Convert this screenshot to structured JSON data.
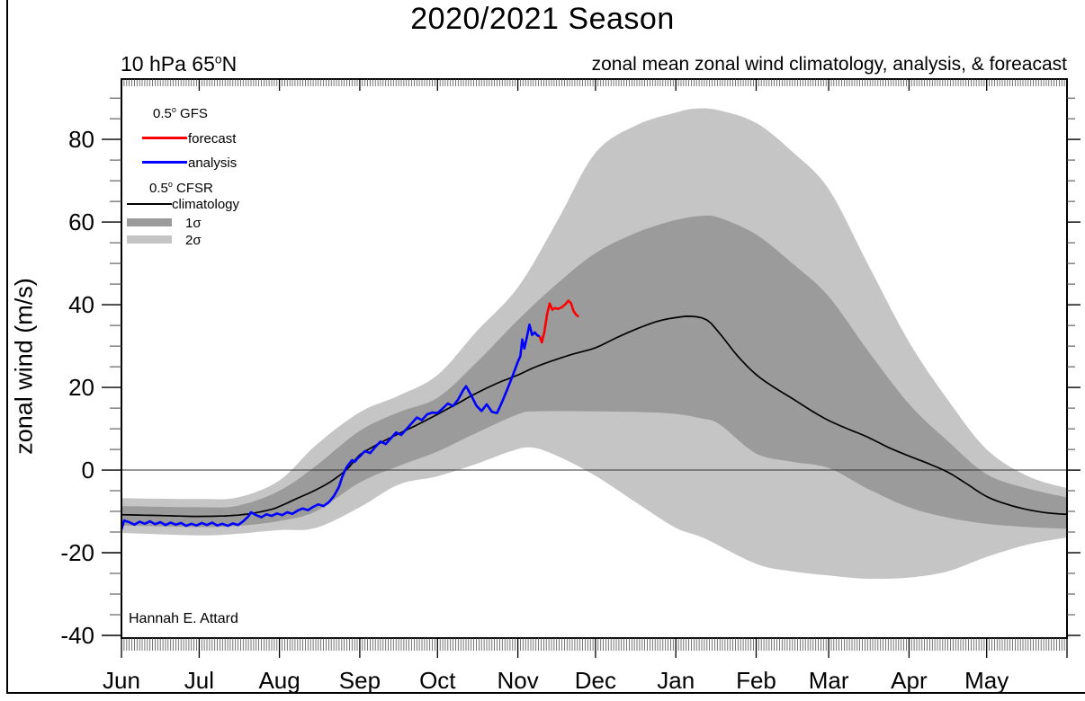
{
  "header": {
    "title": "2020/2021 Season",
    "subtitle": "zonal mean zonal wind climatology, analysis, & foreacast",
    "corner_pre": "10 hPa 65",
    "corner_sup": "o",
    "corner_post": "N",
    "ylabel": "zonal wind (m/s)",
    "credit": "Hannah E. Attard"
  },
  "legend": {
    "gfs_pre": "0.5",
    "gfs_sup": "o",
    "gfs_post": "  GFS",
    "forecast_label": "forecast",
    "analysis_label": "analysis",
    "cfsr_pre": "0.5",
    "cfsr_sup": "o",
    "cfsr_post": " CFSR",
    "climatology_label": "climatology",
    "sigma1_label": "1σ",
    "sigma2_label": "2σ"
  },
  "chart_data": {
    "type": "line",
    "title": "2020/2021 Season",
    "subtitle": "zonal mean zonal wind climatology, analysis, & foreacast",
    "ylabel": "zonal wind (m/s)",
    "x_unit": "days since Jun 1",
    "x_max": 365,
    "y_axis": {
      "min": -40.65,
      "max": 94.6,
      "major": [
        -40,
        -20,
        0,
        20,
        40,
        60,
        80
      ],
      "minor_step": 5
    },
    "zero_line": 0,
    "grid": "off",
    "legend_position": "upper-left",
    "months": [
      {
        "label": "Jun",
        "day": 0
      },
      {
        "label": "Jul",
        "day": 30
      },
      {
        "label": "Aug",
        "day": 61
      },
      {
        "label": "Sep",
        "day": 92
      },
      {
        "label": "Oct",
        "day": 122
      },
      {
        "label": "Nov",
        "day": 153
      },
      {
        "label": "Dec",
        "day": 183
      },
      {
        "label": "Jan",
        "day": 214
      },
      {
        "label": "Feb",
        "day": 245
      },
      {
        "label": "Mar",
        "day": 273
      },
      {
        "label": "Apr",
        "day": 304
      },
      {
        "label": "May",
        "day": 334
      }
    ],
    "colors": {
      "forecast": "#ff0000",
      "analysis": "#0000ff",
      "climatology": "#000000",
      "sigma1_band": "#9b9b9b",
      "sigma2_band": "#c5c5c5"
    },
    "series": {
      "climatology": [
        [
          0,
          -10.8
        ],
        [
          15,
          -11
        ],
        [
          30,
          -11.2
        ],
        [
          45,
          -10.9
        ],
        [
          56,
          -9.8
        ],
        [
          61,
          -8.8
        ],
        [
          68,
          -6.8
        ],
        [
          75,
          -4.8
        ],
        [
          82,
          -2.3
        ],
        [
          88,
          0.8
        ],
        [
          92,
          3.7
        ],
        [
          100,
          6.6
        ],
        [
          107,
          8.8
        ],
        [
          115,
          11.2
        ],
        [
          122,
          13.5
        ],
        [
          130,
          16.2
        ],
        [
          137,
          18.6
        ],
        [
          145,
          21
        ],
        [
          153,
          23
        ],
        [
          160,
          25
        ],
        [
          168,
          26.8
        ],
        [
          175,
          28.2
        ],
        [
          183,
          29.6
        ],
        [
          191,
          32
        ],
        [
          199,
          34.2
        ],
        [
          207,
          36
        ],
        [
          214,
          36.9
        ],
        [
          220,
          37.2
        ],
        [
          226,
          36.3
        ],
        [
          231,
          33
        ],
        [
          238,
          27.5
        ],
        [
          245,
          23.1
        ],
        [
          252,
          20
        ],
        [
          259,
          17.3
        ],
        [
          266,
          14.5
        ],
        [
          273,
          12
        ],
        [
          281,
          9.8
        ],
        [
          288,
          8
        ],
        [
          296,
          5.5
        ],
        [
          304,
          3.4
        ],
        [
          311,
          1.7
        ],
        [
          319,
          -0.5
        ],
        [
          326,
          -3.2
        ],
        [
          334,
          -6.4
        ],
        [
          342,
          -8.3
        ],
        [
          350,
          -9.6
        ],
        [
          358,
          -10.4
        ],
        [
          365,
          -10.7
        ]
      ],
      "sigma1_upper": [
        [
          0,
          -8.7
        ],
        [
          30,
          -9
        ],
        [
          45,
          -8.6
        ],
        [
          61,
          -5
        ],
        [
          75,
          1
        ],
        [
          92,
          9.5
        ],
        [
          107,
          14
        ],
        [
          122,
          17.5
        ],
        [
          137,
          26
        ],
        [
          153,
          36.3
        ],
        [
          168,
          45
        ],
        [
          183,
          52.5
        ],
        [
          199,
          57.5
        ],
        [
          214,
          60.5
        ],
        [
          224,
          61.5
        ],
        [
          231,
          61
        ],
        [
          245,
          57
        ],
        [
          259,
          50
        ],
        [
          273,
          42
        ],
        [
          288,
          29
        ],
        [
          304,
          16
        ],
        [
          319,
          7
        ],
        [
          334,
          -1
        ],
        [
          350,
          -4.5
        ],
        [
          365,
          -6.6
        ]
      ],
      "sigma1_lower": [
        [
          0,
          -13.4
        ],
        [
          30,
          -13.8
        ],
        [
          45,
          -13.5
        ],
        [
          61,
          -12.3
        ],
        [
          75,
          -10
        ],
        [
          92,
          -3
        ],
        [
          107,
          1
        ],
        [
          122,
          4.5
        ],
        [
          137,
          9
        ],
        [
          153,
          13.5
        ],
        [
          160,
          14.2
        ],
        [
          183,
          14.2
        ],
        [
          210,
          13.8
        ],
        [
          224,
          12.5
        ],
        [
          231,
          11
        ],
        [
          245,
          4
        ],
        [
          259,
          2
        ],
        [
          273,
          0.5
        ],
        [
          288,
          -4.5
        ],
        [
          304,
          -9
        ],
        [
          319,
          -11.5
        ],
        [
          334,
          -13
        ],
        [
          350,
          -13.8
        ],
        [
          365,
          -14.2
        ]
      ],
      "sigma2_upper": [
        [
          0,
          -6.8
        ],
        [
          30,
          -7
        ],
        [
          45,
          -6.6
        ],
        [
          61,
          -2.5
        ],
        [
          75,
          6
        ],
        [
          92,
          14
        ],
        [
          107,
          18
        ],
        [
          122,
          23
        ],
        [
          137,
          33.5
        ],
        [
          153,
          44.2
        ],
        [
          168,
          60
        ],
        [
          183,
          76.8
        ],
        [
          199,
          83.5
        ],
        [
          214,
          86.5
        ],
        [
          222,
          87.5
        ],
        [
          231,
          87
        ],
        [
          245,
          84
        ],
        [
          259,
          77
        ],
        [
          273,
          68
        ],
        [
          288,
          50
        ],
        [
          304,
          31
        ],
        [
          319,
          17
        ],
        [
          334,
          5
        ],
        [
          350,
          -1.5
        ],
        [
          365,
          -4.4
        ]
      ],
      "sigma2_lower": [
        [
          0,
          -15.2
        ],
        [
          30,
          -15.8
        ],
        [
          45,
          -15.4
        ],
        [
          61,
          -14.5
        ],
        [
          75,
          -14
        ],
        [
          92,
          -9
        ],
        [
          107,
          -3.5
        ],
        [
          122,
          -1.5
        ],
        [
          137,
          1.5
        ],
        [
          150,
          4.5
        ],
        [
          158,
          5.5
        ],
        [
          168,
          3.5
        ],
        [
          183,
          -1.4
        ],
        [
          199,
          -8
        ],
        [
          214,
          -14
        ],
        [
          225,
          -16.5
        ],
        [
          245,
          -22.7
        ],
        [
          259,
          -24.5
        ],
        [
          273,
          -25.5
        ],
        [
          288,
          -26.3
        ],
        [
          304,
          -26
        ],
        [
          319,
          -24.5
        ],
        [
          334,
          -21
        ],
        [
          350,
          -18
        ],
        [
          365,
          -16.3
        ]
      ],
      "analysis": [
        [
          0,
          -14.4
        ],
        [
          1,
          -12.2
        ],
        [
          3,
          -12.6
        ],
        [
          5,
          -13.2
        ],
        [
          7,
          -12.5
        ],
        [
          9,
          -13
        ],
        [
          11,
          -12.4
        ],
        [
          13,
          -13.1
        ],
        [
          15,
          -12.6
        ],
        [
          17,
          -13.3
        ],
        [
          19,
          -12.7
        ],
        [
          21,
          -13.2
        ],
        [
          23,
          -12.8
        ],
        [
          25,
          -13.5
        ],
        [
          27,
          -13
        ],
        [
          29,
          -13.4
        ],
        [
          31,
          -12.8
        ],
        [
          33,
          -13.3
        ],
        [
          35,
          -12.7
        ],
        [
          37,
          -13.4
        ],
        [
          39,
          -13
        ],
        [
          41,
          -13.5
        ],
        [
          43,
          -12.9
        ],
        [
          45,
          -13.3
        ],
        [
          47,
          -12.4
        ],
        [
          49,
          -11.2
        ],
        [
          50,
          -10.2
        ],
        [
          52,
          -10.9
        ],
        [
          54,
          -11.4
        ],
        [
          56,
          -10.7
        ],
        [
          58,
          -11.1
        ],
        [
          60,
          -10.5
        ],
        [
          62,
          -10.9
        ],
        [
          64,
          -10.2
        ],
        [
          66,
          -10.6
        ],
        [
          68,
          -9.8
        ],
        [
          70,
          -9.3
        ],
        [
          72,
          -9.7
        ],
        [
          74,
          -8.9
        ],
        [
          76,
          -8.3
        ],
        [
          78,
          -8.7
        ],
        [
          80,
          -7.8
        ],
        [
          82,
          -6.3
        ],
        [
          84,
          -4
        ],
        [
          85,
          -2
        ],
        [
          86,
          -0.5
        ],
        [
          87,
          0.8
        ],
        [
          88,
          1.6
        ],
        [
          89,
          2.4
        ],
        [
          90,
          2
        ],
        [
          91,
          2.7
        ],
        [
          92,
          3.3
        ],
        [
          94,
          4.6
        ],
        [
          96,
          4.1
        ],
        [
          98,
          5.6
        ],
        [
          100,
          6.9
        ],
        [
          102,
          6.3
        ],
        [
          104,
          7.7
        ],
        [
          106,
          9.1
        ],
        [
          108,
          8.5
        ],
        [
          110,
          9.9
        ],
        [
          112,
          11.3
        ],
        [
          114,
          12.7
        ],
        [
          116,
          12.1
        ],
        [
          118,
          13.5
        ],
        [
          120,
          13.9
        ],
        [
          122,
          13.8
        ],
        [
          124,
          14.9
        ],
        [
          126,
          16.1
        ],
        [
          128,
          15.5
        ],
        [
          130,
          17.1
        ],
        [
          132,
          19.4
        ],
        [
          133,
          20.3
        ],
        [
          135,
          18.1
        ],
        [
          137,
          15.6
        ],
        [
          139,
          14.3
        ],
        [
          141,
          15.9
        ],
        [
          143,
          14.1
        ],
        [
          145,
          13.8
        ],
        [
          147,
          16.6
        ],
        [
          149,
          19.6
        ],
        [
          151,
          22.8
        ],
        [
          152,
          24.5
        ],
        [
          153,
          26.2
        ],
        [
          154,
          27.6
        ],
        [
          154.7,
          31.6
        ],
        [
          155.5,
          29.4
        ],
        [
          156.5,
          32.1
        ],
        [
          157.5,
          35.2
        ],
        [
          158.5,
          32.7
        ],
        [
          159.5,
          33.3
        ],
        [
          160.5,
          32.6
        ],
        [
          161.5,
          32.3
        ]
      ],
      "forecast": [
        [
          161.5,
          32.3
        ],
        [
          162.3,
          30.9
        ],
        [
          163.3,
          33.6
        ],
        [
          164.3,
          37.7
        ],
        [
          165.3,
          40.3
        ],
        [
          166.3,
          38.8
        ],
        [
          167.3,
          39.2
        ],
        [
          168.5,
          39
        ],
        [
          170,
          39.4
        ],
        [
          171.5,
          40.2
        ],
        [
          172.5,
          41
        ],
        [
          173.5,
          40.4
        ],
        [
          174.5,
          38.5
        ],
        [
          175.5,
          37.6
        ],
        [
          176.5,
          37.1
        ]
      ]
    }
  }
}
